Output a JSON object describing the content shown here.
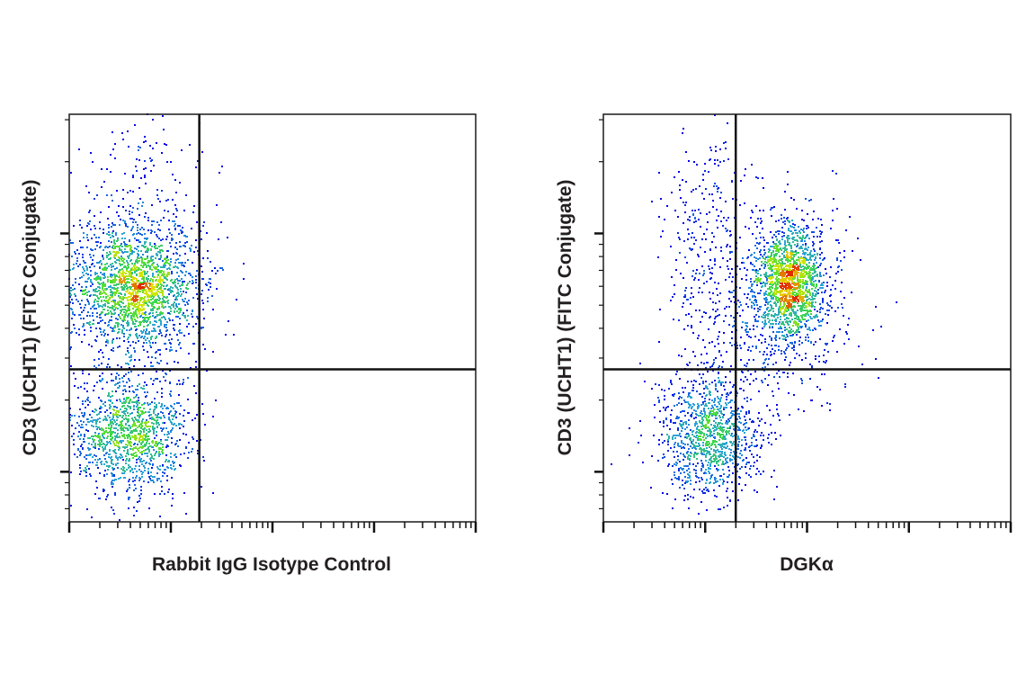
{
  "chart_data": [
    {
      "type": "scatter",
      "subtype": "flow-cytometry-density-dot-plot",
      "xlabel": "Rabbit IgG Isotype Control",
      "ylabel": "CD3 (UCHT1) (FITC Conjugate)",
      "x_scale": "log",
      "y_scale": "log",
      "x_units": "log10 exponent",
      "y_units": "log10 exponent",
      "xlim": [
        0,
        4
      ],
      "ylim": [
        2.79,
        4.5
      ],
      "tick_labels_shown": false,
      "grid": false,
      "quadrant_gate": {
        "x": 1.28,
        "y": 3.43
      },
      "populations": [
        {
          "center": [
            0.63,
            3.77
          ],
          "spread": [
            0.33,
            0.13
          ],
          "count": 2000
        },
        {
          "center": [
            0.72,
            4.1
          ],
          "spread": [
            0.3,
            0.25
          ],
          "count": 250
        },
        {
          "center": [
            0.6,
            3.17
          ],
          "spread": [
            0.3,
            0.13
          ],
          "count": 1300
        }
      ]
    },
    {
      "type": "scatter",
      "subtype": "flow-cytometry-density-dot-plot",
      "xlabel": "DGKα",
      "ylabel": "CD3 (UCHT1) (FITC Conjugate)",
      "x_scale": "log",
      "y_scale": "log",
      "x_units": "log10 exponent",
      "y_units": "log10 exponent",
      "xlim": [
        0,
        4
      ],
      "ylim": [
        2.79,
        4.5
      ],
      "tick_labels_shown": false,
      "grid": false,
      "quadrant_gate": {
        "x": 1.3,
        "y": 3.43
      },
      "populations": [
        {
          "center": [
            1.83,
            3.79
          ],
          "spread": [
            0.17,
            0.12
          ],
          "count": 1500
        },
        {
          "center": [
            1.75,
            3.7
          ],
          "spread": [
            0.35,
            0.22
          ],
          "count": 500
        },
        {
          "center": [
            1.05,
            3.15
          ],
          "spread": [
            0.24,
            0.13
          ],
          "count": 1100
        },
        {
          "center": [
            1.05,
            3.9
          ],
          "spread": [
            0.22,
            0.3
          ],
          "count": 320
        }
      ]
    }
  ],
  "colors": {
    "density_scale": [
      "#0000e6",
      "#2a9fe0",
      "#3fdc3f",
      "#e6e600",
      "#e02a00"
    ],
    "axis": "#1a1a1a"
  }
}
